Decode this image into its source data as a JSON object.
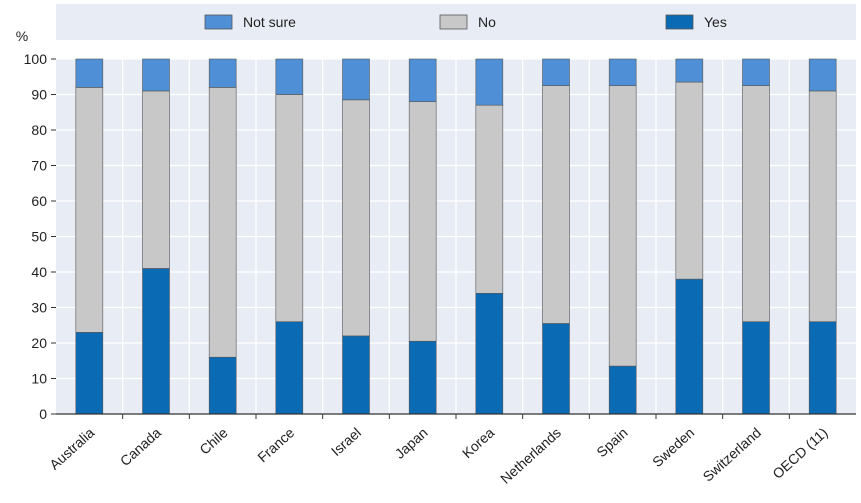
{
  "chart_data": {
    "type": "bar",
    "stacked": true,
    "ylabel": "%",
    "ylim": [
      0,
      100
    ],
    "yticks": [
      0,
      10,
      20,
      30,
      40,
      50,
      60,
      70,
      80,
      90,
      100
    ],
    "grid": true,
    "legend_position": "top",
    "categories": [
      "Australia",
      "Canada",
      "Chile",
      "France",
      "Israel",
      "Japan",
      "Korea",
      "Netherlands",
      "Spain",
      "Sweden",
      "Switzerland",
      "OECD (11)"
    ],
    "legend": [
      {
        "name": "Not sure",
        "color": "#4f8fd6"
      },
      {
        "name": "No",
        "color": "#c8c8c8"
      },
      {
        "name": "Yes",
        "color": "#0a6ab3"
      }
    ],
    "series": [
      {
        "name": "Yes",
        "color": "#0a6ab3",
        "values": [
          23,
          41,
          16,
          26,
          22,
          20.5,
          34,
          25.5,
          13.5,
          38,
          26,
          26
        ]
      },
      {
        "name": "No",
        "color": "#c8c8c8",
        "values": [
          69,
          50,
          76,
          64,
          66.5,
          67.5,
          53,
          67,
          79,
          55.5,
          66.5,
          65
        ]
      },
      {
        "name": "Not sure",
        "color": "#4f8fd6",
        "values": [
          8,
          9,
          8,
          10,
          11.5,
          12,
          13,
          7.5,
          7.5,
          6.5,
          7.5,
          9
        ]
      }
    ]
  }
}
